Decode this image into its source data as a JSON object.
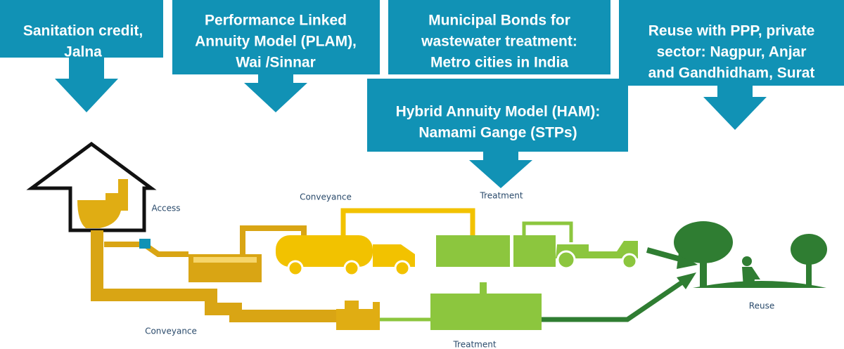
{
  "callouts": [
    {
      "lines": [
        "Sanitation credit,",
        "Jalna"
      ]
    },
    {
      "lines": [
        "Performance Linked",
        "Annuity Model (PLAM),",
        "Wai /Sinnar"
      ]
    },
    {
      "lines": [
        "Municipal Bonds for",
        "wastewater treatment:",
        "Metro cities in India"
      ]
    },
    {
      "lines": [
        "Hybrid Annuity Model (HAM):",
        "Namami Gange (STPs)"
      ]
    },
    {
      "lines": [
        "Reuse with PPP, private",
        "sector: Nagpur, Anjar",
        "and Gandhidham, Surat"
      ]
    }
  ],
  "stages": [
    "Access",
    "Conveyance",
    "Treatment",
    "Conveyance",
    "Treatment",
    "Reuse"
  ]
}
